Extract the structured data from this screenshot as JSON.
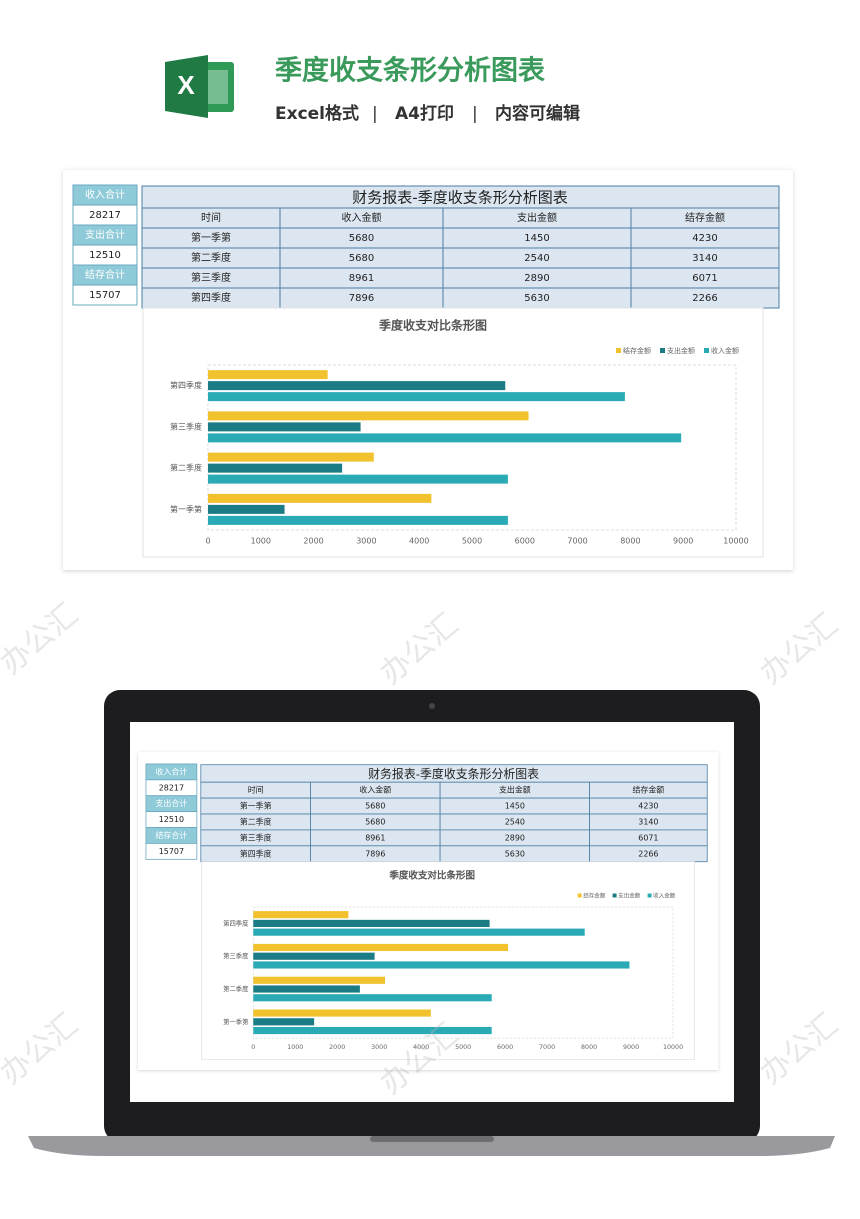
{
  "header": {
    "title": "季度收支条形分析图表",
    "features": [
      "Excel格式",
      "A4打印",
      "内容可编辑"
    ],
    "separator": "|"
  },
  "watermark": "办公汇",
  "summary": [
    {
      "label": "收入合计",
      "value": 28217
    },
    {
      "label": "支出合计",
      "value": 12510
    },
    {
      "label": "结存合计",
      "value": 15707
    }
  ],
  "table": {
    "title": "财务报表-季度收支条形分析图表",
    "header": "时间"
  },
  "chart_data": {
    "type": "bar",
    "orientation": "horizontal",
    "title": "季度收支对比条形图",
    "categories": [
      "第一季第",
      "第二季度",
      "第三季度",
      "第四季度"
    ],
    "series": [
      {
        "name": "结存金额",
        "color": "#f2c12e",
        "values": [
          4230,
          3140,
          6071,
          2266
        ]
      },
      {
        "name": "支出金额",
        "color": "#1b7c85",
        "values": [
          1450,
          2540,
          2890,
          5630
        ]
      },
      {
        "name": "收入金额",
        "color": "#2aaab5",
        "values": [
          5680,
          5680,
          8961,
          7896
        ]
      }
    ],
    "xlim": [
      0,
      10000
    ],
    "xticks": [
      0,
      1000,
      2000,
      3000,
      4000,
      5000,
      6000,
      7000,
      8000,
      9000,
      10000
    ],
    "grid": false,
    "legend": "top-right"
  }
}
